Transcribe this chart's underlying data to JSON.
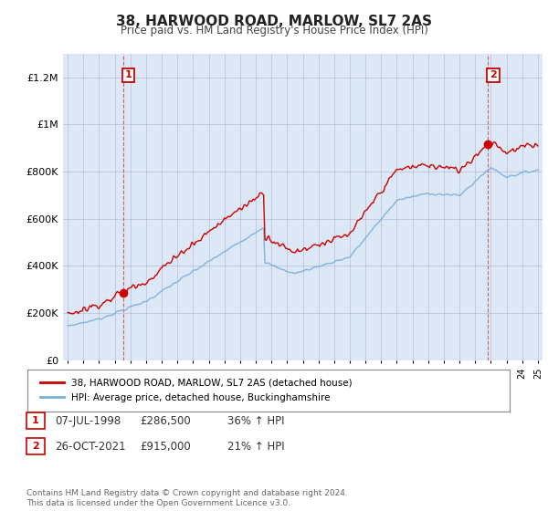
{
  "title": "38, HARWOOD ROAD, MARLOW, SL7 2AS",
  "subtitle": "Price paid vs. HM Land Registry's House Price Index (HPI)",
  "ylim": [
    0,
    1300000
  ],
  "yticks": [
    0,
    200000,
    400000,
    600000,
    800000,
    1000000,
    1200000
  ],
  "ytick_labels": [
    "£0",
    "£200K",
    "£400K",
    "£600K",
    "£800K",
    "£1M",
    "£1.2M"
  ],
  "sale1_x": 1998.53,
  "sale1_y": 286500,
  "sale1_label": "1",
  "sale2_x": 2021.82,
  "sale2_y": 915000,
  "sale2_label": "2",
  "legend_line1": "38, HARWOOD ROAD, MARLOW, SL7 2AS (detached house)",
  "legend_line2": "HPI: Average price, detached house, Buckinghamshire",
  "table_row1": [
    "1",
    "07-JUL-1998",
    "£286,500",
    "36% ↑ HPI"
  ],
  "table_row2": [
    "2",
    "26-OCT-2021",
    "£915,000",
    "21% ↑ HPI"
  ],
  "footer": "Contains HM Land Registry data © Crown copyright and database right 2024.\nThis data is licensed under the Open Government Licence v3.0.",
  "line_color_red": "#cc0000",
  "line_color_blue": "#7aaed6",
  "bg_color": "#ffffff",
  "chart_bg_color": "#dce8f5",
  "grid_color": "#aaaacc",
  "xtick_start": 1995,
  "xtick_end": 2025
}
